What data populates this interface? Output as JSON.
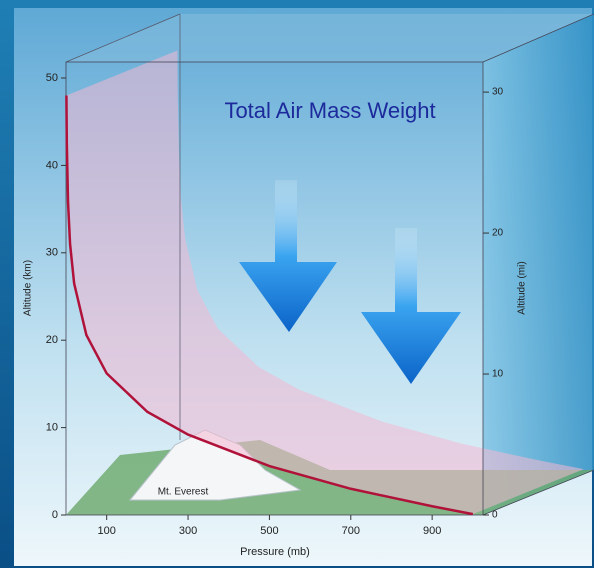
{
  "chart_data": {
    "type": "line",
    "title": "Total Air Mass Weight",
    "annotations": [
      "Mt. Everest"
    ],
    "x_label": "Pressure (mb)",
    "y_label": "Altitude (km)",
    "y2_label": "Altitude (mi)",
    "x": [
      1,
      2,
      5,
      10,
      20,
      50,
      100,
      200,
      300,
      500,
      700,
      900,
      1000
    ],
    "series": [
      {
        "color": "#b0123a",
        "values": [
          48,
          42.5,
          35.8,
          31,
          26.5,
          20.6,
          16.2,
          11.8,
          9.2,
          5.6,
          3,
          1,
          0.1
        ]
      }
    ],
    "xlim": [
      0,
      1025
    ],
    "xticks": [
      100,
      300,
      500,
      700,
      900
    ],
    "ylim": [
      0,
      50
    ],
    "yticks": [
      0,
      10,
      20,
      30,
      40,
      50
    ],
    "y2lim": [
      0,
      31
    ],
    "y2ticks": [
      0,
      10,
      20,
      30
    ]
  }
}
